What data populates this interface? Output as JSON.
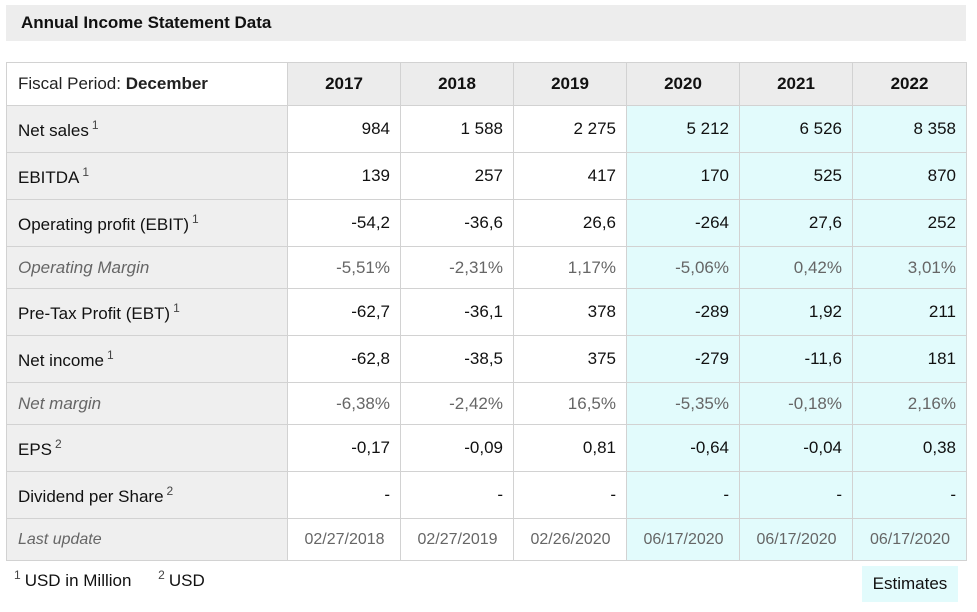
{
  "title": "Annual Income Statement Data",
  "fiscal_period": {
    "label": "Fiscal Period: ",
    "value": "December"
  },
  "years": [
    "2017",
    "2018",
    "2019",
    "2020",
    "2021",
    "2022"
  ],
  "estimate_columns_from_index": 3,
  "rows": [
    {
      "label": "Net sales",
      "note": "1",
      "italic": false,
      "values": [
        "984",
        "1 588",
        "2 275",
        "5 212",
        "6 526",
        "8 358"
      ]
    },
    {
      "label": "EBITDA",
      "note": "1",
      "italic": false,
      "values": [
        "139",
        "257",
        "417",
        "170",
        "525",
        "870"
      ]
    },
    {
      "label": "Operating profit (EBIT)",
      "note": "1",
      "italic": false,
      "values": [
        "-54,2",
        "-36,6",
        "26,6",
        "-264",
        "27,6",
        "252"
      ]
    },
    {
      "label": "Operating Margin",
      "note": "",
      "italic": true,
      "values": [
        "-5,51%",
        "-2,31%",
        "1,17%",
        "-5,06%",
        "0,42%",
        "3,01%"
      ]
    },
    {
      "label": "Pre-Tax Profit (EBT)",
      "note": "1",
      "italic": false,
      "values": [
        "-62,7",
        "-36,1",
        "378",
        "-289",
        "1,92",
        "211"
      ]
    },
    {
      "label": "Net income",
      "note": "1",
      "italic": false,
      "values": [
        "-62,8",
        "-38,5",
        "375",
        "-279",
        "-11,6",
        "181"
      ]
    },
    {
      "label": "Net margin",
      "note": "",
      "italic": true,
      "values": [
        "-6,38%",
        "-2,42%",
        "16,5%",
        "-5,35%",
        "-0,18%",
        "2,16%"
      ]
    },
    {
      "label": "EPS",
      "note": "2",
      "italic": false,
      "values": [
        "-0,17",
        "-0,09",
        "0,81",
        "-0,64",
        "-0,04",
        "0,38"
      ]
    },
    {
      "label": "Dividend per Share",
      "note": "2",
      "italic": false,
      "values": [
        "-",
        "-",
        "-",
        "-",
        "-",
        "-"
      ]
    },
    {
      "label": "Last update",
      "note": "",
      "italic": true,
      "lastupdate": true,
      "values": [
        "02/27/2018",
        "02/27/2019",
        "02/26/2020",
        "06/17/2020",
        "06/17/2020",
        "06/17/2020"
      ]
    }
  ],
  "footnotes": [
    {
      "mark": "1",
      "text": "USD in Million"
    },
    {
      "mark": "2",
      "text": "USD"
    }
  ],
  "estimates_button": "Estimates",
  "colors": {
    "estimate_bg": "#e2fbfc",
    "header_bg": "#ececec",
    "label_bg": "#efefef",
    "title_bg": "#ededed"
  }
}
